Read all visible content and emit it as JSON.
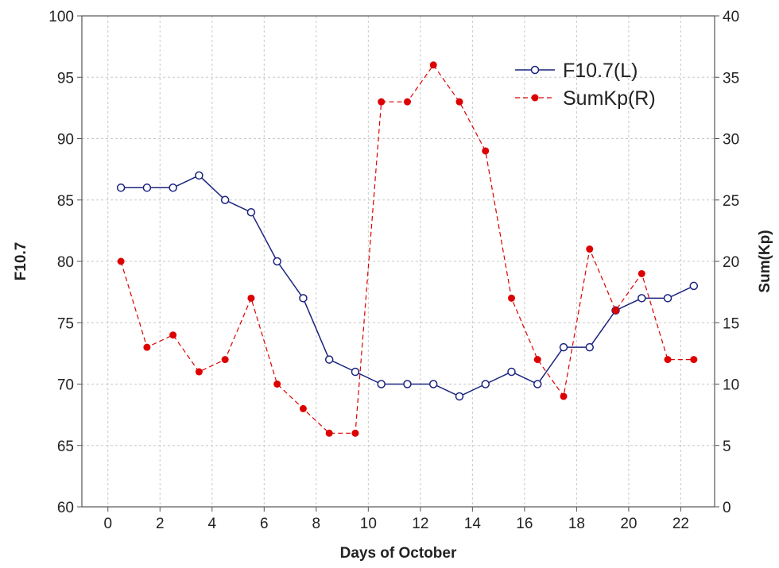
{
  "chart_data": {
    "type": "line",
    "xlabel": "Days of October",
    "ylabel_left": "F10.7",
    "ylabel_right": "Sum(Kp)",
    "xlim": [
      -1,
      23.3
    ],
    "ylim_left": [
      60,
      100
    ],
    "ylim_right": [
      0,
      40
    ],
    "x_ticks": [
      0,
      2,
      4,
      6,
      8,
      10,
      12,
      14,
      16,
      18,
      20,
      22
    ],
    "y_ticks_left": [
      60,
      65,
      70,
      75,
      80,
      85,
      90,
      95,
      100
    ],
    "y_ticks_right": [
      0,
      5,
      10,
      15,
      20,
      25,
      30,
      35,
      40
    ],
    "grid": true,
    "legend_position": "top-right",
    "series": [
      {
        "name": "F10.7(L)",
        "axis": "left",
        "color": "#1a237e",
        "line_style": "solid",
        "marker": "open-circle",
        "x": [
          0.5,
          1.5,
          2.5,
          3.5,
          4.5,
          5.5,
          6.5,
          7.5,
          8.5,
          9.5,
          10.5,
          11.5,
          12.5,
          13.5,
          14.5,
          15.5,
          16.5,
          17.5,
          18.5,
          19.5,
          20.5,
          21.5,
          22.5
        ],
        "values": [
          86,
          86,
          86,
          87,
          85,
          84,
          80,
          77,
          72,
          71,
          70,
          70,
          70,
          69,
          70,
          71,
          70,
          73,
          73,
          76,
          77,
          77,
          78
        ]
      },
      {
        "name": "SumKp(R)",
        "axis": "right",
        "color": "#dd0000",
        "line_style": "dashed",
        "marker": "filled-circle",
        "x": [
          0.5,
          1.5,
          2.5,
          3.5,
          4.5,
          5.5,
          6.5,
          7.5,
          8.5,
          9.5,
          10.5,
          11.5,
          12.5,
          13.5,
          14.5,
          15.5,
          16.5,
          17.5,
          18.5,
          19.5,
          20.5,
          21.5,
          22.5
        ],
        "values": [
          20,
          13,
          14,
          11,
          12,
          17,
          10,
          8,
          6,
          6,
          33,
          33,
          36,
          33,
          29,
          17,
          12,
          9,
          21,
          16,
          19,
          12,
          12
        ]
      }
    ]
  }
}
